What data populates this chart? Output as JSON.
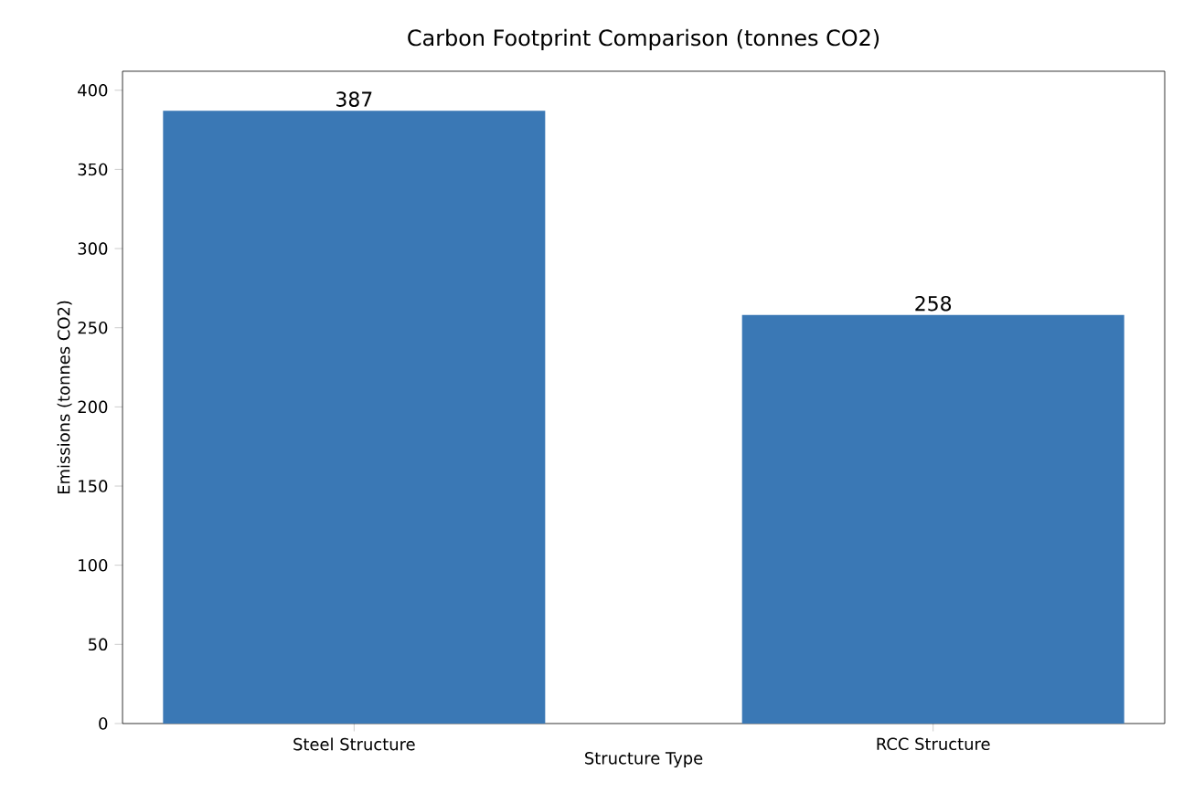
{
  "chart_data": {
    "type": "bar",
    "title": "Carbon Footprint Comparison (tonnes CO2)",
    "xlabel": "Structure Type",
    "ylabel": "Emissions (tonnes CO2)",
    "categories": [
      "Steel Structure",
      "RCC Structure"
    ],
    "values": [
      387,
      258
    ],
    "color": "#3a78b5",
    "ylim": [
      0,
      412
    ],
    "yticks": [
      0,
      50,
      100,
      150,
      200,
      250,
      300,
      350,
      400
    ],
    "data_labels": true
  }
}
